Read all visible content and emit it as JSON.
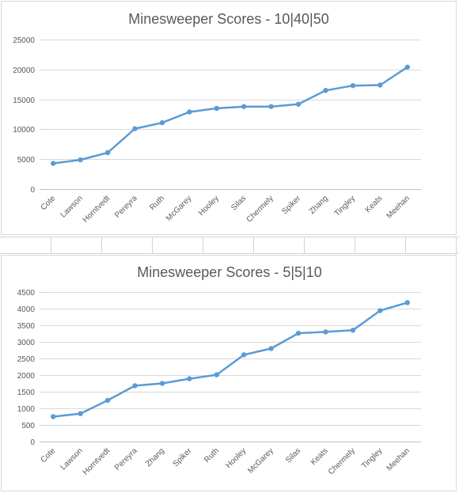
{
  "chart_data": [
    {
      "type": "line",
      "title": "Minesweeper Scores - 10|40|50",
      "categories": [
        "Cote",
        "Lawson",
        "Horntvedt",
        "Pereyra",
        "Ruth",
        "McGarey",
        "Hooley",
        "Silas",
        "Chermely",
        "Spiker",
        "Zhang",
        "Tingley",
        "Keats",
        "Meehan"
      ],
      "values": [
        4300,
        4900,
        6100,
        10100,
        11100,
        12900,
        13500,
        13800,
        13800,
        14200,
        16500,
        17300,
        17400,
        20400
      ],
      "ylim": [
        0,
        25000
      ],
      "yticks": [
        0,
        5000,
        10000,
        15000,
        20000,
        25000
      ],
      "ytick_labels": [
        "0",
        "5000",
        "10000",
        "15000",
        "20000",
        "25000"
      ],
      "grid": true,
      "line_color": "#5b9bd5"
    },
    {
      "type": "line",
      "title": "Minesweeper Scores - 5|5|10",
      "categories": [
        "Cote",
        "Lawson",
        "Horntvedt",
        "Pereyra",
        "Zhang",
        "Spiker",
        "Ruth",
        "Hooley",
        "McGarey",
        "Silas",
        "Keats",
        "Chermely",
        "Tingley",
        "Meehan"
      ],
      "values": [
        750,
        840,
        1240,
        1680,
        1750,
        1890,
        2010,
        2610,
        2800,
        3260,
        3300,
        3350,
        3940,
        4180
      ],
      "ylim": [
        0,
        4500
      ],
      "yticks": [
        0,
        500,
        1000,
        1500,
        2000,
        2500,
        3000,
        3500,
        4000,
        4500
      ],
      "ytick_labels": [
        "0",
        "500",
        "1000",
        "1500",
        "2000",
        "2500",
        "3000",
        "3500",
        "4000",
        "4500"
      ],
      "grid": true,
      "line_color": "#5b9bd5"
    }
  ]
}
